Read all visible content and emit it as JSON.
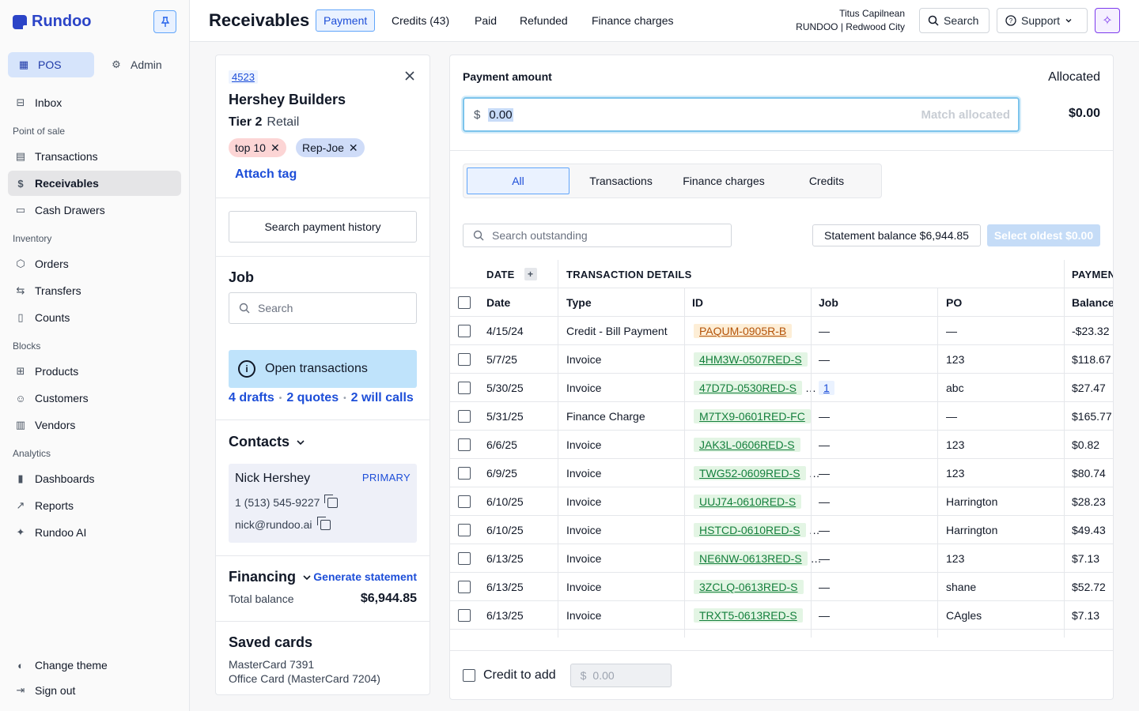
{
  "brand": {
    "name": "Rundoo"
  },
  "sidebar": {
    "modes": [
      {
        "label": "POS"
      },
      {
        "label": "Admin"
      }
    ],
    "inbox": "Inbox",
    "sections": {
      "pos": "Point of sale",
      "inventory": "Inventory",
      "blocks": "Blocks",
      "analytics": "Analytics"
    },
    "items": {
      "transactions": "Transactions",
      "receivables": "Receivables",
      "cash_drawers": "Cash Drawers",
      "orders": "Orders",
      "transfers": "Transfers",
      "counts": "Counts",
      "products": "Products",
      "customers": "Customers",
      "vendors": "Vendors",
      "dashboards": "Dashboards",
      "reports": "Reports",
      "rundoo_ai": "Rundoo AI"
    },
    "footer": {
      "change_theme": "Change theme",
      "sign_out": "Sign out"
    }
  },
  "header": {
    "title": "Receivables",
    "tabs": [
      "Payment",
      "Credits (43)",
      "Paid",
      "Refunded",
      "Finance charges"
    ],
    "user_name": "Titus Capilnean",
    "user_org": "RUNDOO | Redwood City",
    "search_label": "Search",
    "support_label": "Support"
  },
  "customer": {
    "id": "4523",
    "name": "Hershey Builders",
    "tier": "Tier 2",
    "tier_type": "Retail",
    "tags": [
      "top 10",
      "Rep-Joe"
    ],
    "attach_tag": "Attach tag",
    "search_history": "Search payment history",
    "job_title": "Job",
    "job_placeholder": "Search",
    "open_tx_label": "Open transactions",
    "open_links": [
      "4 drafts",
      "2 quotes",
      "2 will calls"
    ],
    "contacts_title": "Contacts",
    "contact": {
      "name": "Nick Hershey",
      "badge": "PRIMARY",
      "phone": "1 (513) 545-9227",
      "email": "nick@rundoo.ai"
    },
    "financing_title": "Financing",
    "generate_statement": "Generate statement",
    "total_balance_label": "Total balance",
    "total_balance": "$6,944.85",
    "saved_cards_title": "Saved cards",
    "cards": [
      "MasterCard 7391",
      "Office Card (MasterCard 7204)"
    ]
  },
  "payment": {
    "amount_label": "Payment amount",
    "currency": "$",
    "amount_value": "0.00",
    "match_allocated": "Match allocated",
    "allocated_label": "Allocated",
    "allocated_value": "$0.00",
    "filters": [
      "All",
      "Transactions",
      "Finance charges",
      "Credits"
    ],
    "search_placeholder": "Search outstanding",
    "statement_balance": "Statement balance $6,944.85",
    "select_oldest": "Select oldest $0.00",
    "group_headers": {
      "date": "DATE",
      "details": "TRANSACTION DETAILS",
      "payment": "PAYMENT"
    },
    "columns": [
      "Date",
      "Type",
      "ID",
      "Job",
      "PO",
      "Balance"
    ],
    "rows": [
      {
        "date": "4/15/24",
        "type": "Credit - Bill Payment",
        "id": "PAQUM-0905R-B",
        "id_color": "orange",
        "job": "—",
        "po": "—",
        "balance": "-$23.32"
      },
      {
        "date": "5/7/25",
        "type": "Invoice",
        "id": "4HM3W-0507RED-S",
        "id_color": "green",
        "job": "—",
        "po": "123",
        "balance": "$118.67"
      },
      {
        "date": "5/30/25",
        "type": "Invoice",
        "id": "47D7D-0530RED-S",
        "id_color": "green",
        "job": "1",
        "po": "abc",
        "balance": "$27.47"
      },
      {
        "date": "5/31/25",
        "type": "Finance Charge",
        "id": "M7TX9-0601RED-FC",
        "id_color": "green",
        "job": "—",
        "po": "—",
        "balance": "$165.77"
      },
      {
        "date": "6/6/25",
        "type": "Invoice",
        "id": "JAK3L-0606RED-S",
        "id_color": "green",
        "job": "—",
        "po": "123",
        "balance": "$0.82"
      },
      {
        "date": "6/9/25",
        "type": "Invoice",
        "id": "TWG52-0609RED-S",
        "id_color": "green",
        "job": "—",
        "po": "123",
        "balance": "$80.74"
      },
      {
        "date": "6/10/25",
        "type": "Invoice",
        "id": "UUJ74-0610RED-S",
        "id_color": "green",
        "job": "—",
        "po": "Harrington",
        "balance": "$28.23"
      },
      {
        "date": "6/10/25",
        "type": "Invoice",
        "id": "HSTCD-0610RED-S",
        "id_color": "green",
        "job": "—",
        "po": "Harrington",
        "balance": "$49.43"
      },
      {
        "date": "6/13/25",
        "type": "Invoice",
        "id": "NE6NW-0613RED-S",
        "id_color": "green",
        "job": "—",
        "po": "123",
        "balance": "$7.13"
      },
      {
        "date": "6/13/25",
        "type": "Invoice",
        "id": "3ZCLQ-0613RED-S",
        "id_color": "green",
        "job": "—",
        "po": "shane",
        "balance": "$52.72"
      },
      {
        "date": "6/13/25",
        "type": "Invoice",
        "id": "TRXT5-0613RED-S",
        "id_color": "green",
        "job": "—",
        "po": "CAgles",
        "balance": "$7.13"
      }
    ],
    "credit_label": "Credit to add",
    "credit_placeholder": "0.00"
  }
}
